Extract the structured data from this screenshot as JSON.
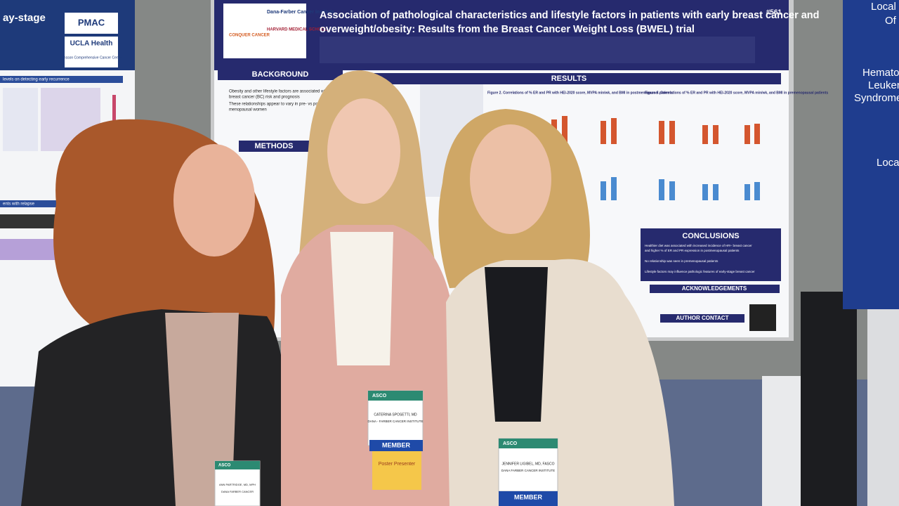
{
  "left_poster": {
    "title_fragment": "ay-stage",
    "logos": [
      "PMAC",
      "UCLA Health",
      "Jonsson Comprehensive Cancer Center"
    ],
    "section_1": "levels on detecting early recurrence",
    "section_2": "ents with relapse"
  },
  "main_poster": {
    "number": "#561",
    "title_lines": [
      "Association of pathological characteristics and lifestyle factors in patients with early breast cancer and",
      "overweight/obesity: Results from the Breast Cancer Weight Loss (BWEL) trial"
    ],
    "logos": [
      "Dana-Farber Cancer Institute",
      "HARVARD MEDICAL SCHOOL",
      "CONQUER CANCER"
    ],
    "sections": {
      "background": "BACKGROUND",
      "methods": "METHODS",
      "results": "RESULTS",
      "conclusions": "CONCLUSIONS",
      "acknowledgements": "ACKNOWLEDGEMENTS",
      "author_contact": "AUTHOR CONTACT"
    },
    "figure_2": "Figure 2. Correlations of % ER and PR with HEI-2020 score, MVPA min/wk, and BMI in postmenopausal patients",
    "figure_3": "Figure 3. Correlations of % ER and PR with HEI-2020 score, MVPA min/wk, and BMI in premenopausal patients",
    "background_bullets": [
      "Obesity and other lifestyle factors are associated with",
      "breast cancer (BC) risk and prognosis",
      "These relationships appear to vary in pre- vs post",
      "menopausal women"
    ],
    "conclusions_bullets": [
      "Healthier diet was associated with increased incidence of HR+ breast cancer",
      "and higher % of ER and PR expression in postmenopausal patients",
      "No relationship was seen in premenopausal patients",
      "Lifestyle factors may influence pathologic features of early-stage breast cancer"
    ]
  },
  "right_poster": {
    "lines": [
      "Local",
      "Of",
      "Hemato",
      "Leuken",
      "Syndrome",
      "Local"
    ]
  },
  "badges": [
    {
      "org": "ASCO",
      "name": "CATERINA SPOSETTI, MD",
      "affiliation": "DANA - FARBER CANCER INSTITUTE",
      "membership": "MEMBER",
      "ribbon": "Poster Presenter"
    },
    {
      "org": "ASCO",
      "name": "JENNIFER LIGIBEL, MD, FASCO",
      "affiliation": "DANA FARBER CANCER INSTITUTE",
      "membership": "MEMBER"
    },
    {
      "org": "ASCO",
      "name": "ANN PARTRIDGE, MD, MPH",
      "affiliation": "DANA FARBER CANCER"
    }
  ]
}
